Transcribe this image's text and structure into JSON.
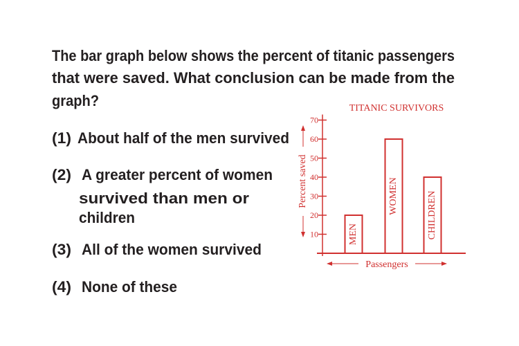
{
  "question": {
    "lines": [
      "The bar graph below shows the percent of titanic passengers",
      "that were saved. What conclusion can be made from the",
      "graph?"
    ]
  },
  "options": [
    {
      "number": "(1)",
      "lines": [
        "About half of the men survived"
      ]
    },
    {
      "number": "(2)",
      "lines": [
        "A greater percent of women",
        "survived than men or",
        "children"
      ]
    },
    {
      "number": "(3)",
      "lines": [
        "All of the women survived"
      ]
    },
    {
      "number": "(4)",
      "lines": [
        "None of these"
      ]
    }
  ],
  "chart_data": {
    "type": "bar",
    "title": "TITANIC SURVIVORS",
    "categories": [
      "MEN",
      "WOMEN",
      "CHILDREN"
    ],
    "values": [
      20,
      60,
      40
    ],
    "color": "#d0302f",
    "ylim": [
      0,
      70
    ],
    "yticks": [
      10,
      20,
      30,
      40,
      50,
      60,
      70
    ],
    "x_label": "Passengers",
    "y_label": "Percent saved"
  }
}
